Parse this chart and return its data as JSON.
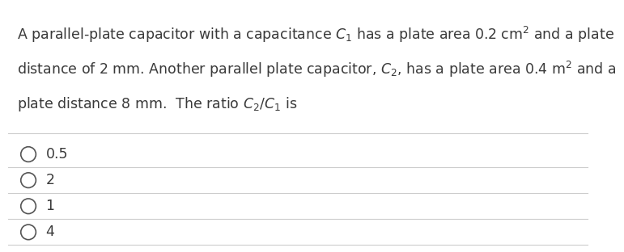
{
  "background_color": "#ffffff",
  "text_color": "#3a3a3a",
  "line1": "A parallel-plate capacitor with a capacitance $C_1$ has a plate area 0.2 cm$^2$ and a plate",
  "line2": "distance of 2 mm. Another parallel plate capacitor, $C_2$, has a plate area 0.4 m$^2$ and a",
  "line3": "plate distance 8 mm.  The ratio $C_2$/$C_1$ is",
  "choices": [
    "0.5",
    "2",
    "1",
    "4"
  ],
  "divider_color": "#cccccc",
  "circle_color": "#555555",
  "font_size": 12.5,
  "choice_font_size": 12.5
}
